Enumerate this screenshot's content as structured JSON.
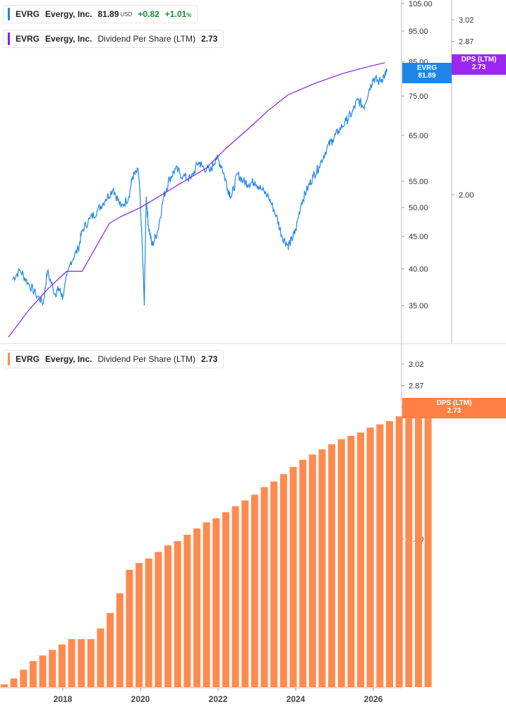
{
  "colors": {
    "price_line": "#1f86e8",
    "dps_line": "#8a1fe0",
    "bars": "#ff8a4f",
    "price_tag": "#1f86e8",
    "dps_tag_top": "#9b27f0",
    "dps_tag_bottom": "#ff7f45",
    "positive": "#1a8a3a"
  },
  "top_legend": {
    "price": {
      "ticker": "EVRG",
      "name": "Evergy, Inc.",
      "value": "81.89",
      "unit": "USD",
      "change": "+0.82",
      "change_pct": "+1.01",
      "pct_sign": "%"
    },
    "dps": {
      "ticker": "EVRG",
      "name": "Evergy, Inc.",
      "metric": "Dividend Per Share (LTM)",
      "value": "2.73"
    }
  },
  "bottom_legend": {
    "ticker": "EVRG",
    "name": "Evergy, Inc.",
    "metric": "Dividend Per Share (LTM)",
    "value": "2.73"
  },
  "tags": {
    "price": {
      "line1": "EVRG",
      "line2": "81.89"
    },
    "dps_top": {
      "line1": "DPS (LTM)",
      "line2": "2.73"
    },
    "dps_bottom": {
      "line1": "DPS (LTM)",
      "line2": "2.73"
    }
  },
  "chart_data": [
    {
      "type": "line",
      "scale": "log",
      "x_axis_labels": [
        "2018",
        "2020",
        "2022",
        "2024",
        "2026"
      ],
      "y_tick_labels": [
        "105.00",
        "95.00",
        "85.00",
        "75.00",
        "65.00",
        "55.00",
        "50.00",
        "45.00",
        "40.00",
        "35.00"
      ],
      "ylim": [
        30,
        105
      ],
      "secondary_y_tick_labels": [
        "3.02",
        "2.87",
        "2.00"
      ],
      "series": [
        {
          "name": "EVRG",
          "x": [
            2016.7,
            2016.9,
            2017.1,
            2017.3,
            2017.5,
            2017.6,
            2017.8,
            2017.9,
            2018.0,
            2018.2,
            2018.4,
            2018.5,
            2018.7,
            2018.9,
            2019.1,
            2019.3,
            2019.5,
            2019.7,
            2019.8,
            2019.95,
            2020.0,
            2020.1,
            2020.15,
            2020.2,
            2020.3,
            2020.45,
            2020.6,
            2020.75,
            2020.9,
            2021.1,
            2021.3,
            2021.5,
            2021.6,
            2021.8,
            2021.95,
            2022.1,
            2022.25,
            2022.35,
            2022.5,
            2022.65,
            2022.8,
            2022.95,
            2023.1,
            2023.3,
            2023.5,
            2023.65,
            2023.8,
            2023.9,
            2024.0,
            2024.15,
            2024.3,
            2024.45,
            2024.6,
            2024.8,
            2024.95,
            2025.1,
            2025.3,
            2025.45,
            2025.6,
            2025.75,
            2025.9,
            2026.0,
            2026.15,
            2026.3,
            2026.35
          ],
          "values": [
            38.5,
            39.8,
            38.0,
            36.5,
            35.3,
            39.6,
            36.5,
            37.2,
            36.1,
            41.0,
            43.0,
            46.0,
            48.0,
            49.5,
            51.5,
            53.5,
            50.0,
            52.0,
            56.0,
            57.0,
            50.5,
            35.0,
            52.0,
            47.0,
            43.5,
            46.0,
            52.0,
            55.5,
            57.5,
            56.0,
            55.5,
            59.0,
            58.0,
            57.0,
            60.0,
            58.0,
            53.5,
            52.0,
            56.5,
            55.0,
            54.5,
            55.0,
            53.5,
            52.0,
            48.5,
            45.0,
            43.5,
            44.5,
            46.0,
            51.0,
            53.5,
            56.0,
            58.0,
            62.0,
            64.0,
            66.0,
            68.5,
            70.5,
            74.0,
            72.0,
            77.0,
            80.0,
            79.0,
            81.0,
            81.89
          ]
        },
        {
          "name": "Dividend Per Share (LTM)",
          "x": [
            2016.6,
            2017.1,
            2017.6,
            2018.1,
            2018.5,
            2019.2,
            2019.5,
            2020.0,
            2021.0,
            2021.7,
            2022.2,
            2022.8,
            2023.3,
            2023.8,
            2024.5,
            2025.2,
            2025.8,
            2026.3
          ],
          "values": [
            1.43,
            1.52,
            1.6,
            1.67,
            1.67,
            1.87,
            1.9,
            1.94,
            2.05,
            2.13,
            2.23,
            2.34,
            2.44,
            2.53,
            2.6,
            2.66,
            2.7,
            2.73
          ]
        }
      ]
    },
    {
      "type": "bar",
      "name": "Dividend Per Share (LTM)",
      "y_tick_labels": [
        "3.02",
        "2.87",
        "2.73",
        "2.00"
      ],
      "x_axis_labels": [
        "2018",
        "2020",
        "2022",
        "2024",
        "2026"
      ],
      "values": [
        1.42,
        1.44,
        1.47,
        1.5,
        1.52,
        1.54,
        1.56,
        1.58,
        1.58,
        1.58,
        1.62,
        1.68,
        1.76,
        1.86,
        1.89,
        1.91,
        1.94,
        1.97,
        1.99,
        2.02,
        2.05,
        2.08,
        2.1,
        2.13,
        2.16,
        2.19,
        2.22,
        2.26,
        2.29,
        2.33,
        2.37,
        2.41,
        2.44,
        2.47,
        2.5,
        2.53,
        2.55,
        2.57,
        2.6,
        2.62,
        2.64,
        2.67,
        2.69,
        2.71,
        2.73
      ]
    }
  ]
}
